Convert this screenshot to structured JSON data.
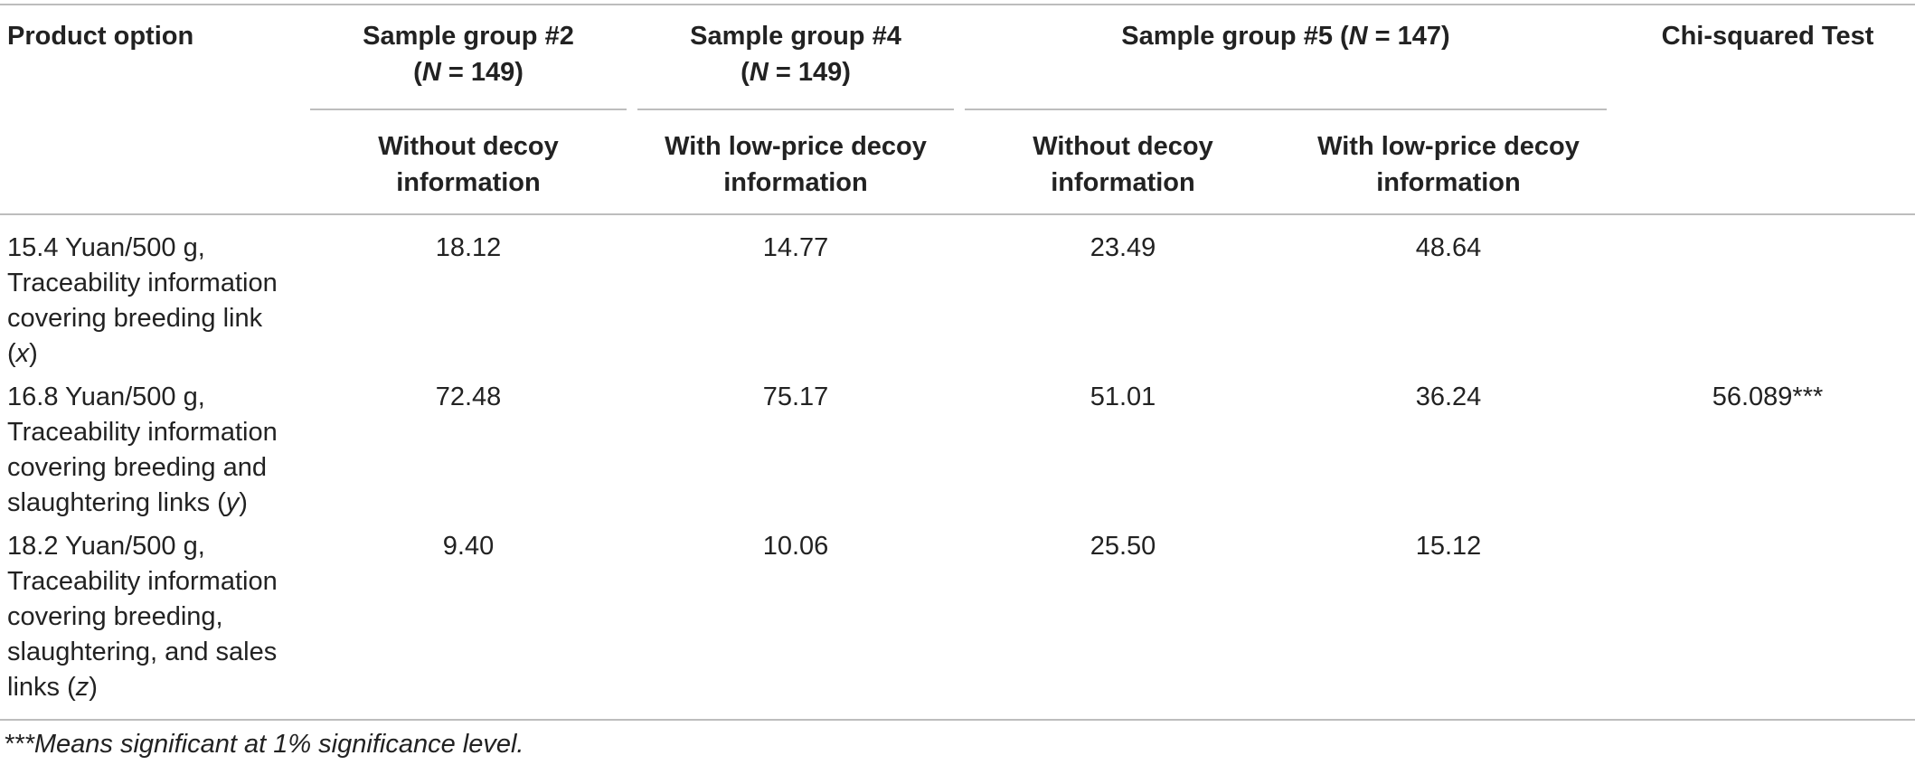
{
  "table": {
    "headers": {
      "product_option": "Product option",
      "group2": {
        "line1": "Sample group #2",
        "n_prefix": "(",
        "n_var": "N",
        "n_suffix": " = 149)"
      },
      "group4": {
        "line1": "Sample group #4",
        "n_prefix": "(",
        "n_var": "N",
        "n_suffix": " = 149)"
      },
      "group5": {
        "prefix": "Sample group #5 (",
        "n_var": "N",
        "n_suffix": " = 147)"
      },
      "chi": "Chi-squared Test",
      "sub": {
        "g2": [
          "Without decoy",
          "information"
        ],
        "g4": [
          "With low-price decoy",
          "information"
        ],
        "g5a": [
          "Without decoy",
          "information"
        ],
        "g5b": [
          "With low-price decoy",
          "information"
        ]
      }
    },
    "rows": [
      {
        "lines": [
          "15.4 Yuan/500 g,",
          "Traceability information",
          "covering breeding link"
        ],
        "last_prefix": "(",
        "var": "x",
        "last_suffix": ")",
        "values": [
          "18.12",
          "14.77",
          "23.49",
          "48.64"
        ],
        "chi": ""
      },
      {
        "lines": [
          "16.8 Yuan/500 g,",
          "Traceability information",
          "covering breeding and"
        ],
        "last_prefix": "slaughtering links (",
        "var": "y",
        "last_suffix": ")",
        "values": [
          "72.48",
          "75.17",
          "51.01",
          "36.24"
        ],
        "chi": "56.089***"
      },
      {
        "lines": [
          "18.2 Yuan/500 g,",
          "Traceability information",
          "covering breeding,",
          "slaughtering, and sales"
        ],
        "last_prefix": "links (",
        "var": "z",
        "last_suffix": ")",
        "values": [
          "9.40",
          "10.06",
          "25.50",
          "15.12"
        ],
        "chi": ""
      }
    ],
    "footnote": "***Means significant at 1% significance level."
  }
}
